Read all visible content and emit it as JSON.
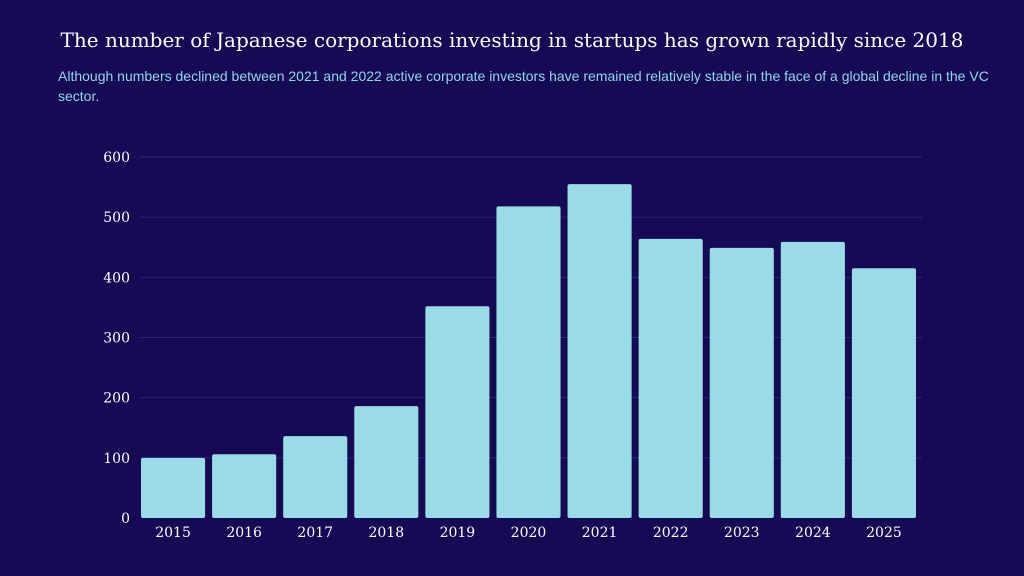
{
  "chart_data": {
    "type": "bar",
    "title": "The number of Japanese corporations investing in startups has grown rapidly since 2018",
    "subtitle": "Although numbers declined between 2021 and 2022 active corporate investors  have remained relatively stable in the face of a global decline in the VC sector.",
    "categories": [
      "2015",
      "2016",
      "2017",
      "2018",
      "2019",
      "2020",
      "2021",
      "2022",
      "2023",
      "2024",
      "2025"
    ],
    "values": [
      100,
      106,
      136,
      186,
      352,
      518,
      555,
      464,
      449,
      459,
      415
    ],
    "xlabel": "",
    "ylabel": "",
    "ylim": [
      0,
      600
    ],
    "yticks": [
      0,
      100,
      200,
      300,
      400,
      500,
      600
    ],
    "grid": true,
    "colors": {
      "background": "#160a55",
      "bar": "#9adce6",
      "grid": "#2e2572",
      "subtitle": "#8fd7e6"
    }
  }
}
